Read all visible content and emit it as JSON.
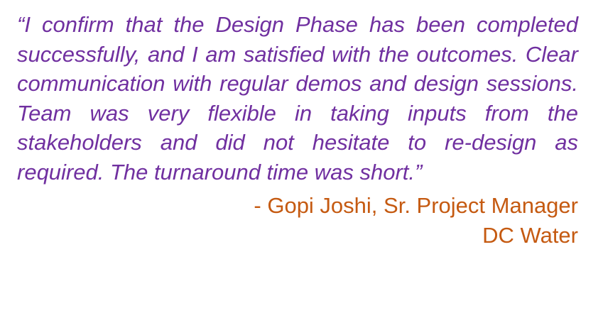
{
  "testimonial": {
    "quote": "“I confirm that the Design Phase has been completed successfully, and I am satisfied with the outcomes. Clear communication with regular demos and design sessions. Team was very flexible in taking inputs from the stakeholders and did not hesitate to re-design as required. The turnaround time was short.”",
    "author_line": "- Gopi Joshi, Sr. Project Manager",
    "organization": "DC Water"
  },
  "colors": {
    "quote_text": "#7030A0",
    "attribution_text": "#C55A11",
    "background": "#FFFFFF"
  }
}
